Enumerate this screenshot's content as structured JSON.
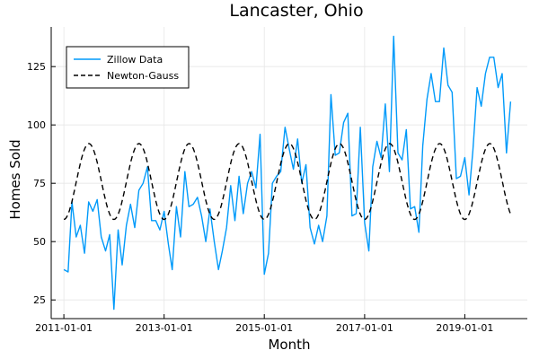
{
  "chart_data": {
    "type": "line",
    "title": "Lancaster, Ohio",
    "xlabel": "Month",
    "ylabel": "Homes Sold",
    "x_ticks": [
      "2011-01-01",
      "2013-01-01",
      "2015-01-01",
      "2017-01-01",
      "2019-01-01"
    ],
    "y_ticks": [
      25,
      50,
      75,
      100,
      125
    ],
    "xlim": [
      "2010-10-01",
      "2020-04-01"
    ],
    "ylim": [
      17,
      142
    ],
    "grid": true,
    "legend_position": "top-left",
    "series": [
      {
        "name": "Zillow Data",
        "color": "#009AFA",
        "dash": "solid",
        "x": [
          "2011-01-01",
          "2011-02-01",
          "2011-03-01",
          "2011-04-01",
          "2011-05-01",
          "2011-06-01",
          "2011-07-01",
          "2011-08-01",
          "2011-09-01",
          "2011-10-01",
          "2011-11-01",
          "2011-12-01",
          "2012-01-01",
          "2012-02-01",
          "2012-03-01",
          "2012-04-01",
          "2012-05-01",
          "2012-06-01",
          "2012-07-01",
          "2012-08-01",
          "2012-09-01",
          "2012-10-01",
          "2012-11-01",
          "2012-12-01",
          "2013-01-01",
          "2013-02-01",
          "2013-03-01",
          "2013-04-01",
          "2013-05-01",
          "2013-06-01",
          "2013-07-01",
          "2013-08-01",
          "2013-09-01",
          "2013-10-01",
          "2013-11-01",
          "2013-12-01",
          "2014-01-01",
          "2014-02-01",
          "2014-03-01",
          "2014-04-01",
          "2014-05-01",
          "2014-06-01",
          "2014-07-01",
          "2014-08-01",
          "2014-09-01",
          "2014-10-01",
          "2014-11-01",
          "2014-12-01",
          "2015-01-01",
          "2015-02-01",
          "2015-03-01",
          "2015-04-01",
          "2015-05-01",
          "2015-06-01",
          "2015-07-01",
          "2015-08-01",
          "2015-09-01",
          "2015-10-01",
          "2015-11-01",
          "2015-12-01",
          "2016-01-01",
          "2016-02-01",
          "2016-03-01",
          "2016-04-01",
          "2016-05-01",
          "2016-06-01",
          "2016-07-01",
          "2016-08-01",
          "2016-09-01",
          "2016-10-01",
          "2016-11-01",
          "2016-12-01",
          "2017-01-01",
          "2017-02-01",
          "2017-03-01",
          "2017-04-01",
          "2017-05-01",
          "2017-06-01",
          "2017-07-01",
          "2017-08-01",
          "2017-09-01",
          "2017-10-01",
          "2017-11-01",
          "2017-12-01",
          "2018-01-01",
          "2018-02-01",
          "2018-03-01",
          "2018-04-01",
          "2018-05-01",
          "2018-06-01",
          "2018-07-01",
          "2018-08-01",
          "2018-09-01",
          "2018-10-01",
          "2018-11-01",
          "2018-12-01",
          "2019-01-01",
          "2019-02-01",
          "2019-03-01",
          "2019-04-01",
          "2019-05-01",
          "2019-06-01",
          "2019-07-01",
          "2019-08-01",
          "2019-09-01",
          "2019-10-01",
          "2019-11-01",
          "2019-12-01"
        ],
        "y": [
          38,
          37,
          67,
          52,
          57,
          45,
          67,
          63,
          68,
          52,
          46,
          53,
          21,
          55,
          40,
          57,
          66,
          56,
          72,
          75,
          82,
          59,
          59,
          55,
          63,
          49,
          38,
          65,
          52,
          80,
          65,
          66,
          69,
          61,
          50,
          64,
          50,
          38,
          46,
          56,
          74,
          59,
          78,
          62,
          75,
          80,
          73,
          96,
          36,
          45,
          75,
          78,
          80,
          99,
          90,
          81,
          94,
          75,
          83,
          56,
          49,
          57,
          50,
          61,
          113,
          87,
          88,
          101,
          105,
          61,
          62,
          99,
          58,
          46,
          82,
          93,
          86,
          109,
          80,
          138,
          88,
          85,
          98,
          64,
          65,
          54,
          91,
          111,
          122,
          110,
          110,
          133,
          117,
          114,
          77,
          78,
          86,
          70,
          89,
          116,
          108,
          122,
          129,
          129,
          116,
          122,
          88,
          110
        ]
      },
      {
        "name": "Newton-Gauss",
        "color": "#000000",
        "dash": "dashed",
        "model": {
          "mean": 75.75,
          "amplitude": 16.25,
          "period_months": 12,
          "peak_month": 7
        },
        "x_range": [
          "2011-01-01",
          "2019-12-01"
        ]
      }
    ]
  }
}
